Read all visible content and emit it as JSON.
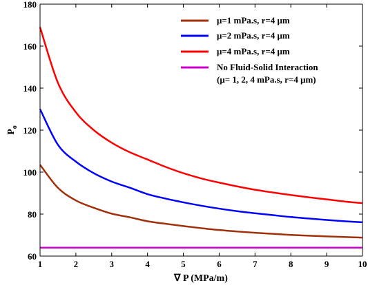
{
  "chart_data": {
    "type": "line",
    "title": "",
    "xlabel": "∇ P (MPa/m)",
    "ylabel_main": "P",
    "ylabel_sub": "o",
    "xlim": [
      1,
      10
    ],
    "ylim": [
      60,
      180
    ],
    "xticks": [
      1,
      2,
      3,
      4,
      5,
      6,
      7,
      8,
      9,
      10
    ],
    "yticks": [
      60,
      80,
      100,
      120,
      140,
      160,
      180
    ],
    "grid": false,
    "legend_position": "top-right",
    "series": [
      {
        "name": "μ=1 mPa.s, r=4 μm",
        "color": "#a0300a",
        "x": [
          1,
          1.5,
          2,
          2.5,
          3,
          3.5,
          4,
          4.5,
          5,
          5.5,
          6,
          6.5,
          7,
          7.5,
          8,
          8.5,
          9,
          9.5,
          10
        ],
        "y": [
          103.5,
          92.5,
          86.5,
          83,
          80.2,
          78.5,
          76.6,
          75.4,
          74.3,
          73.3,
          72.4,
          71.7,
          71.1,
          70.6,
          70.1,
          69.7,
          69.4,
          69.1,
          68.8
        ]
      },
      {
        "name": "μ=2 mPa.s, r=4 μm",
        "color": "#0000ff",
        "x": [
          1,
          1.5,
          2,
          2.5,
          3,
          3.5,
          4,
          4.5,
          5,
          5.5,
          6,
          6.5,
          7,
          7.5,
          8,
          8.5,
          9,
          9.5,
          10
        ],
        "y": [
          130,
          113,
          105,
          99.5,
          95.5,
          92.6,
          89.5,
          87.4,
          85.6,
          84,
          82.6,
          81.4,
          80.4,
          79.5,
          78.6,
          77.9,
          77.2,
          76.6,
          76.1
        ]
      },
      {
        "name": "μ=4 mPa.s, r=4 μm",
        "color": "#ff0000",
        "x": [
          1,
          1.5,
          2,
          2.5,
          3,
          3.5,
          4,
          4.5,
          5,
          5.5,
          6,
          6.5,
          7,
          7.5,
          8,
          8.5,
          9,
          9.5,
          10
        ],
        "y": [
          169,
          142.5,
          128.5,
          120,
          114,
          109.5,
          106,
          102.5,
          99.5,
          97,
          95,
          93.2,
          91.6,
          90.3,
          89.1,
          88,
          87,
          86,
          85.2
        ]
      },
      {
        "name": "No Fluid-Solid Interaction",
        "name_line2": "(μ= 1, 2, 4 mPa.s, r=4 μm)",
        "color": "#cc00cc",
        "x": [
          1,
          10
        ],
        "y": [
          64,
          64
        ]
      }
    ]
  }
}
